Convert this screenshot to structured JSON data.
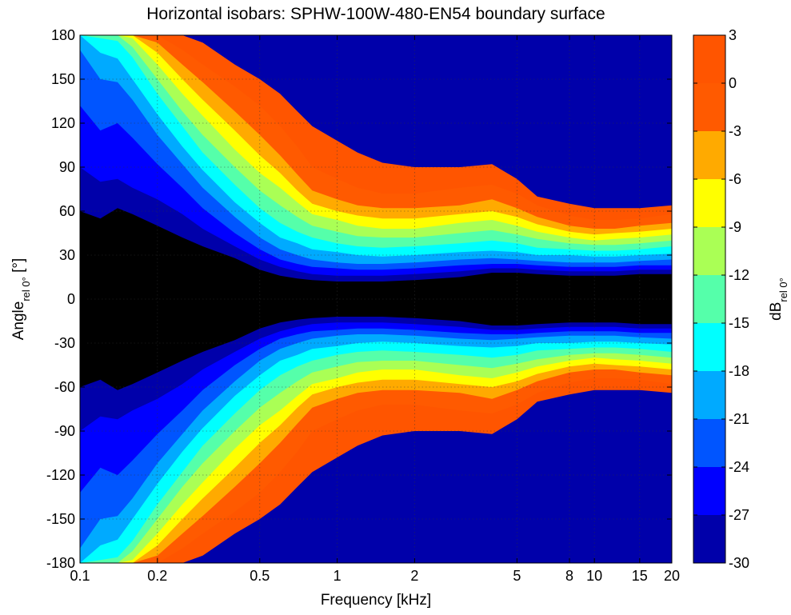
{
  "chart_data": {
    "type": "heatmap",
    "title": "Horizontal isobars: SPHW-100W-480-EN54 boundary surface",
    "xlabel": "Frequency [kHz]",
    "ylabel": {
      "main": "Angle",
      "sub": "rel 0°",
      "unit": " [°]"
    },
    "colorbar_label": {
      "main": "dB",
      "sub": "rel 0°"
    },
    "x_scale": "log",
    "xlim": [
      0.1,
      20
    ],
    "ylim": [
      -180,
      180
    ],
    "x_ticks": [
      {
        "value": 0.1,
        "label": "0.1"
      },
      {
        "value": 0.2,
        "label": "0.2"
      },
      {
        "value": 0.5,
        "label": "0.5"
      },
      {
        "value": 1,
        "label": "1"
      },
      {
        "value": 2,
        "label": "2"
      },
      {
        "value": 5,
        "label": "5"
      },
      {
        "value": 8,
        "label": "8"
      },
      {
        "value": 10,
        "label": "10"
      },
      {
        "value": 15,
        "label": "15"
      },
      {
        "value": 20,
        "label": "20"
      }
    ],
    "y_ticks": [
      {
        "value": 180,
        "label": "180"
      },
      {
        "value": 150,
        "label": "150"
      },
      {
        "value": 120,
        "label": "120"
      },
      {
        "value": 90,
        "label": "90"
      },
      {
        "value": 60,
        "label": "60"
      },
      {
        "value": 30,
        "label": "30"
      },
      {
        "value": 0,
        "label": "0"
      },
      {
        "value": -30,
        "label": "-30"
      },
      {
        "value": -60,
        "label": "-60"
      },
      {
        "value": -90,
        "label": "-90"
      },
      {
        "value": -120,
        "label": "-120"
      },
      {
        "value": -150,
        "label": "-150"
      },
      {
        "value": -180,
        "label": "-180"
      }
    ],
    "grid": true,
    "colorbar": {
      "position": "right",
      "levels": [
        3,
        0,
        -3,
        -6,
        -9,
        -12,
        -15,
        -18,
        -21,
        -24,
        -27,
        -30
      ],
      "level_labels": [
        "3",
        "0",
        "-3",
        "-6",
        "-9",
        "-12",
        "-15",
        "-18",
        "-21",
        "-24",
        "-27",
        "-30"
      ],
      "band_colors": [
        "#ff5500",
        "#ff5a00",
        "#ffaa00",
        "#ffff00",
        "#aaff55",
        "#55ffaa",
        "#00ffff",
        "#00aaff",
        "#0055ff",
        "#0000ff",
        "#0000aa"
      ]
    },
    "contour_widths": {
      "frequencies_khz": [
        0.1,
        0.12,
        0.14,
        0.16,
        0.2,
        0.25,
        0.3,
        0.4,
        0.5,
        0.6,
        0.7,
        0.8,
        1,
        1.2,
        1.5,
        2,
        3,
        4,
        5,
        6,
        8,
        10,
        12,
        15,
        20
      ],
      "band_edge_angles_deg": [
        [
          180,
          180,
          180,
          180,
          180,
          180,
          175,
          160,
          150,
          140,
          128,
          118,
          108,
          100,
          93,
          90,
          90,
          92,
          82,
          70,
          65,
          62,
          62,
          62,
          64
        ],
        [
          180,
          180,
          180,
          180,
          180,
          170,
          160,
          145,
          132,
          118,
          104,
          90,
          82,
          76,
          72,
          72,
          76,
          78,
          72,
          64,
          57,
          54,
          54,
          55,
          58
        ],
        [
          180,
          180,
          180,
          180,
          175,
          160,
          148,
          128,
          112,
          98,
          85,
          74,
          68,
          64,
          62,
          62,
          64,
          68,
          62,
          56,
          50,
          48,
          48,
          50,
          52
        ],
        [
          180,
          180,
          180,
          180,
          168,
          150,
          136,
          115,
          98,
          86,
          74,
          65,
          60,
          57,
          55,
          55,
          58,
          60,
          56,
          51,
          46,
          44,
          45,
          46,
          48
        ],
        [
          180,
          180,
          180,
          178,
          160,
          140,
          125,
          102,
          86,
          76,
          66,
          58,
          54,
          50,
          48,
          48,
          52,
          54,
          50,
          46,
          42,
          40,
          41,
          42,
          44
        ],
        [
          180,
          180,
          180,
          172,
          150,
          128,
          112,
          90,
          74,
          64,
          56,
          50,
          46,
          43,
          42,
          42,
          45,
          47,
          44,
          41,
          38,
          37,
          37,
          38,
          40
        ],
        [
          180,
          178,
          176,
          165,
          140,
          118,
          100,
          78,
          62,
          52,
          46,
          42,
          38,
          36,
          35,
          36,
          38,
          40,
          38,
          35,
          34,
          33,
          33,
          34,
          36
        ],
        [
          180,
          168,
          164,
          150,
          126,
          104,
          88,
          66,
          52,
          42,
          38,
          34,
          32,
          30,
          29,
          30,
          32,
          33,
          32,
          30,
          30,
          29,
          29,
          30,
          31
        ],
        [
          170,
          150,
          148,
          136,
          112,
          92,
          76,
          56,
          42,
          34,
          30,
          27,
          25,
          24,
          24,
          25,
          27,
          28,
          27,
          26,
          25,
          25,
          25,
          26,
          27
        ],
        [
          132,
          115,
          120,
          110,
          92,
          76,
          62,
          45,
          34,
          27,
          24,
          22,
          21,
          20,
          20,
          21,
          23,
          24,
          24,
          23,
          22,
          22,
          22,
          23,
          23
        ],
        [
          90,
          80,
          82,
          76,
          68,
          58,
          48,
          36,
          27,
          22,
          19,
          17,
          16,
          16,
          16,
          17,
          19,
          21,
          21,
          20,
          19,
          19,
          19,
          20,
          20
        ],
        [
          60,
          55,
          62,
          58,
          50,
          42,
          36,
          28,
          20,
          16,
          14,
          13,
          12,
          12,
          12,
          13,
          15,
          18,
          18,
          17,
          16,
          16,
          16,
          17,
          17
        ]
      ]
    }
  }
}
